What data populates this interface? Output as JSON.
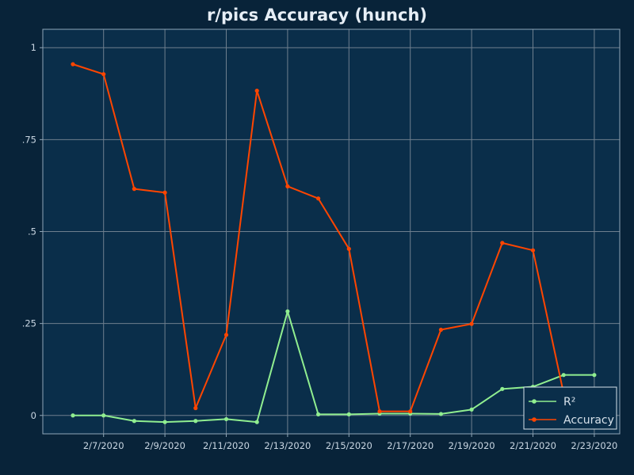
{
  "chart_data": {
    "type": "line",
    "title": "r/pics Accuracy (hunch)",
    "xlabel": "",
    "ylabel": "",
    "x": [
      "2/6/2020",
      "2/7/2020",
      "2/8/2020",
      "2/9/2020",
      "2/10/2020",
      "2/11/2020",
      "2/12/2020",
      "2/13/2020",
      "2/14/2020",
      "2/15/2020",
      "2/16/2020",
      "2/17/2020",
      "2/18/2020",
      "2/19/2020",
      "2/20/2020",
      "2/21/2020",
      "2/22/2020",
      "2/23/2020"
    ],
    "x_tick_labels": [
      "2/7/2020",
      "2/9/2020",
      "2/11/2020",
      "2/13/2020",
      "2/15/2020",
      "2/17/2020",
      "2/19/2020",
      "2/21/2020",
      "2/23/2020"
    ],
    "y_ticks": [
      0,
      0.25,
      0.5,
      0.75,
      1
    ],
    "y_tick_labels": [
      "0",
      ".25",
      ".5",
      ".75",
      "1"
    ],
    "ylim": [
      -0.05,
      1.05
    ],
    "grid": true,
    "legend_position": "bottom-right",
    "series": [
      {
        "name": "R²",
        "color": "#90ee90",
        "values": [
          0.0,
          0.0,
          -0.015,
          -0.018,
          -0.015,
          -0.01,
          -0.018,
          0.283,
          0.003,
          0.003,
          0.005,
          0.005,
          0.004,
          0.016,
          0.072,
          0.078,
          0.11,
          0.11
        ]
      },
      {
        "name": "Accuracy",
        "color": "#ff4500",
        "values": [
          0.955,
          0.928,
          0.616,
          0.606,
          0.02,
          0.219,
          0.883,
          0.623,
          0.59,
          0.453,
          0.011,
          0.011,
          0.233,
          0.249,
          0.469,
          0.449,
          0.06,
          null
        ]
      }
    ]
  },
  "colors": {
    "page_background": "#082339",
    "plot_background": "#0a2e4a",
    "grid": "#6e7f8e",
    "frame": "#8fa6b8"
  }
}
